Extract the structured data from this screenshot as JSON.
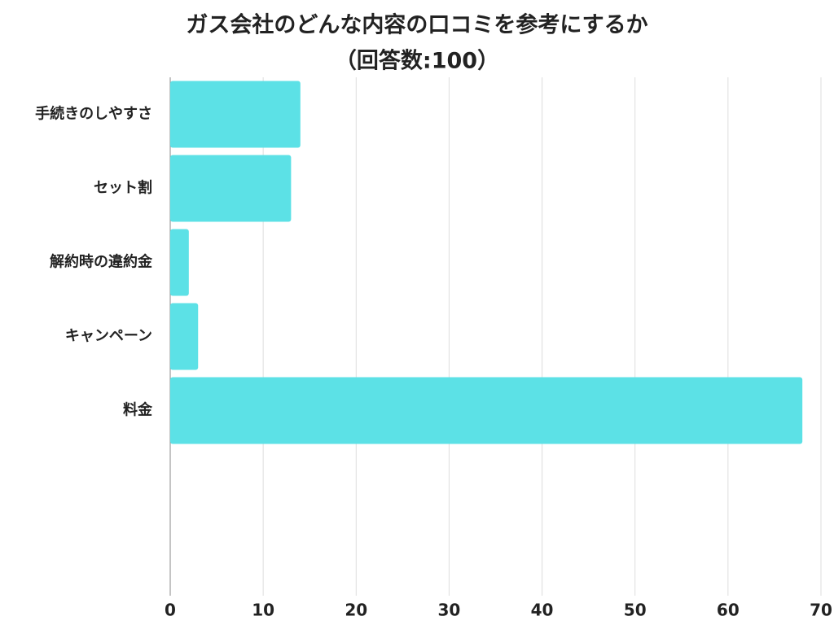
{
  "chart_data": {
    "type": "bar",
    "orientation": "horizontal",
    "title": "ガス会社のどんな内容の口コミを参考にするか",
    "subtitle": "（回答数:100）",
    "categories": [
      "手続きのしやすさ",
      "セット割",
      "解約時の違約金",
      "キャンペーン",
      "料金"
    ],
    "values": [
      14,
      13,
      2,
      3,
      68
    ],
    "color": "#5ce1e6",
    "xlim": [
      0,
      70
    ],
    "xticks": [
      0,
      10,
      20,
      30,
      40,
      50,
      60,
      70
    ],
    "grid": true
  }
}
